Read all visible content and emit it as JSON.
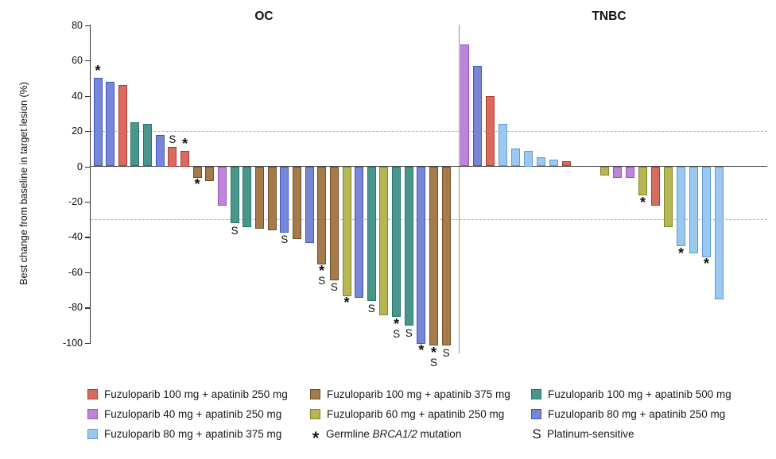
{
  "chart_data": {
    "type": "bar",
    "ylabel": "Best change from baseline in target lesion (%)",
    "ylim": [
      -105,
      80
    ],
    "yticks": [
      80,
      60,
      40,
      20,
      0,
      -20,
      -40,
      -60,
      -80,
      -100
    ],
    "reference_lines": [
      20,
      -30
    ],
    "grid": false,
    "legend_position": "bottom",
    "series": {
      "red": {
        "label": "Fuzuloparib 100 mg + apatinib 250 mg",
        "fill": "#D96A60",
        "stroke": "#B23A31"
      },
      "brown": {
        "label": "Fuzuloparib 100 mg + apatinib 375 mg",
        "fill": "#A57B4C",
        "stroke": "#6F4E24"
      },
      "teal": {
        "label": "Fuzuloparib 100 mg + apatinib 500 mg",
        "fill": "#4A968C",
        "stroke": "#23776C"
      },
      "purple": {
        "label": "Fuzuloparib 40 mg + apatinib 250 mg",
        "fill": "#BB86D8",
        "stroke": "#9A50C8"
      },
      "yellow": {
        "label": "Fuzuloparib 60 mg + apatinib 250 mg",
        "fill": "#B4B754",
        "stroke": "#83861F"
      },
      "blue": {
        "label": "Fuzuloparib 80 mg + apatinib 250 mg",
        "fill": "#7787D6",
        "stroke": "#4156C5"
      },
      "lightblue": {
        "label": "Fuzuloparib 80 mg + apatinib 375 mg",
        "fill": "#9CC8F0",
        "stroke": "#5B9CDC"
      }
    },
    "marker_defs": {
      "brca": {
        "symbol": "*",
        "label_pre": "Germline ",
        "label_italic": "BRCA1/2",
        "label_post": " mutation"
      },
      "platinum": {
        "symbol": "S",
        "label_pre": "Platinum-sensitive",
        "label_italic": "",
        "label_post": ""
      }
    },
    "legend_columns": [
      [
        "series:red",
        "series:purple",
        "series:lightblue"
      ],
      [
        "series:brown",
        "series:yellow",
        "marker:brca"
      ],
      [
        "series:teal",
        "series:blue",
        "marker:platinum"
      ]
    ],
    "groups": [
      {
        "name": "OC",
        "bars": [
          {
            "series": "blue",
            "value": 50,
            "markers": [
              "*"
            ]
          },
          {
            "series": "blue",
            "value": 48,
            "markers": []
          },
          {
            "series": "red",
            "value": 46,
            "markers": []
          },
          {
            "series": "teal",
            "value": 25,
            "markers": []
          },
          {
            "series": "teal",
            "value": 24,
            "markers": []
          },
          {
            "series": "blue",
            "value": 18,
            "markers": []
          },
          {
            "series": "red",
            "value": 11,
            "markers": [
              "S"
            ]
          },
          {
            "series": "red",
            "value": 9,
            "markers": [
              "*"
            ]
          },
          {
            "series": "brown",
            "value": -6,
            "markers": [
              "*"
            ]
          },
          {
            "series": "brown",
            "value": -8,
            "markers": []
          },
          {
            "series": "purple",
            "value": -22,
            "markers": []
          },
          {
            "series": "teal",
            "value": -32,
            "markers": [
              "S"
            ]
          },
          {
            "series": "teal",
            "value": -34,
            "markers": []
          },
          {
            "series": "brown",
            "value": -35,
            "markers": []
          },
          {
            "series": "brown",
            "value": -36,
            "markers": []
          },
          {
            "series": "blue",
            "value": -37,
            "markers": [
              "S"
            ]
          },
          {
            "series": "brown",
            "value": -41,
            "markers": []
          },
          {
            "series": "blue",
            "value": -43,
            "markers": []
          },
          {
            "series": "brown",
            "value": -55,
            "markers": [
              "*",
              "S"
            ]
          },
          {
            "series": "brown",
            "value": -64,
            "markers": [
              "S"
            ]
          },
          {
            "series": "yellow",
            "value": -73,
            "markers": [
              "*"
            ]
          },
          {
            "series": "blue",
            "value": -74,
            "markers": []
          },
          {
            "series": "teal",
            "value": -76,
            "markers": [
              "S"
            ]
          },
          {
            "series": "yellow",
            "value": -84,
            "markers": []
          },
          {
            "series": "teal",
            "value": -85,
            "markers": [
              "*",
              "S"
            ]
          },
          {
            "series": "teal",
            "value": -90,
            "markers": [
              "S"
            ]
          },
          {
            "series": "blue",
            "value": -100,
            "markers": [
              "*"
            ]
          },
          {
            "series": "brown",
            "value": -101,
            "markers": [
              "*",
              "S"
            ]
          },
          {
            "series": "brown",
            "value": -101,
            "markers": [
              "S"
            ]
          }
        ]
      },
      {
        "name": "TNBC",
        "bars": [
          {
            "series": "purple",
            "value": 69,
            "markers": []
          },
          {
            "series": "blue",
            "value": 57,
            "markers": []
          },
          {
            "series": "red",
            "value": 40,
            "markers": []
          },
          {
            "series": "lightblue",
            "value": 24,
            "markers": []
          },
          {
            "series": "lightblue",
            "value": 10,
            "markers": []
          },
          {
            "series": "lightblue",
            "value": 9,
            "markers": []
          },
          {
            "series": "lightblue",
            "value": 5,
            "markers": []
          },
          {
            "series": "lightblue",
            "value": 4,
            "markers": []
          },
          {
            "series": "red",
            "value": 3,
            "markers": []
          },
          {
            "series": null,
            "value": 0,
            "markers": []
          },
          {
            "series": null,
            "value": 0,
            "markers": []
          },
          {
            "series": "yellow",
            "value": -5,
            "markers": []
          },
          {
            "series": "purple",
            "value": -6,
            "markers": []
          },
          {
            "series": "purple",
            "value": -6,
            "markers": []
          },
          {
            "series": "yellow",
            "value": -16,
            "markers": [
              "*"
            ]
          },
          {
            "series": "red",
            "value": -22,
            "markers": []
          },
          {
            "series": "yellow",
            "value": -34,
            "markers": []
          },
          {
            "series": "lightblue",
            "value": -45,
            "markers": [
              "*"
            ]
          },
          {
            "series": "lightblue",
            "value": -49,
            "markers": []
          },
          {
            "series": "lightblue",
            "value": -51,
            "markers": [
              "*"
            ]
          },
          {
            "series": "lightblue",
            "value": -75,
            "markers": []
          }
        ]
      }
    ]
  }
}
